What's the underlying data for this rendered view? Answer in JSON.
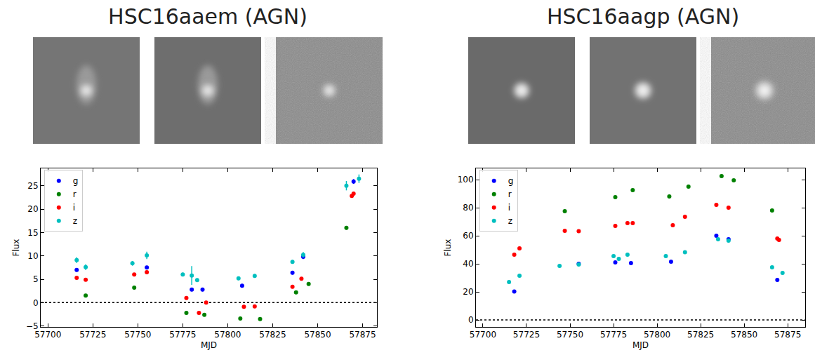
{
  "chart_data": [
    {
      "type": "scatter",
      "title": "HSC16aaem (AGN)",
      "x_label": "MJD",
      "y_label": "Flux",
      "xlim": [
        57696,
        57883
      ],
      "ylim": [
        -5.2,
        28.7
      ],
      "xticks": [
        57700,
        57725,
        57750,
        57775,
        57800,
        57825,
        57850,
        57875
      ],
      "yticks": [
        {
          "value": -5,
          "label": "−5"
        },
        0,
        5,
        10,
        15,
        20,
        25
      ],
      "legend": "upper left",
      "hline": 0,
      "series": [
        {
          "name": "g",
          "color": "#0000ff",
          "x": [
            57716,
            57755,
            57780,
            57786,
            57808,
            57836,
            57842,
            57870
          ],
          "values": [
            7.0,
            7.5,
            2.8,
            2.8,
            3.6,
            6.4,
            9.8,
            25.9
          ],
          "errors": [
            0.4,
            0.4,
            0.4,
            0.4,
            0.4,
            0.4,
            0.5,
            0.5
          ]
        },
        {
          "name": "r",
          "color": "#008000",
          "x": [
            57721,
            57748,
            57777,
            57787,
            57807,
            57818,
            57838,
            57845,
            57866
          ],
          "values": [
            1.5,
            3.2,
            -2.2,
            -2.6,
            -3.4,
            -3.5,
            2.2,
            4.0,
            16.0
          ],
          "errors": [
            0.3,
            0.3,
            0.3,
            0.3,
            0.3,
            0.3,
            0.3,
            0.3,
            0.4
          ]
        },
        {
          "name": "i",
          "color": "#ff0000",
          "x": [
            57716,
            57721,
            57748,
            57755,
            57777,
            57784,
            57788,
            57809,
            57815,
            57836,
            57841,
            57869,
            57870
          ],
          "values": [
            5.3,
            4.9,
            6.0,
            6.5,
            1.0,
            -2.2,
            0.0,
            -0.9,
            -0.8,
            3.4,
            5.1,
            22.8,
            23.3
          ],
          "errors": [
            0.3,
            0.3,
            0.3,
            0.3,
            0.3,
            0.3,
            0.3,
            0.3,
            0.3,
            0.3,
            0.3,
            0.4,
            0.4
          ]
        },
        {
          "name": "z",
          "color": "#00bfbf",
          "x": [
            57716,
            57721,
            57747,
            57755,
            57775,
            57780,
            57783,
            57806,
            57815,
            57836,
            57842,
            57866,
            57873
          ],
          "values": [
            9.1,
            7.6,
            8.4,
            10.1,
            6.0,
            5.8,
            4.8,
            5.2,
            5.7,
            8.7,
            10.2,
            25.0,
            26.5
          ],
          "errors": [
            0.6,
            0.6,
            0.5,
            0.8,
            0.4,
            2.0,
            0.4,
            0.4,
            0.4,
            0.4,
            0.6,
            1.0,
            0.9
          ]
        }
      ]
    },
    {
      "type": "scatter",
      "title": "HSC16aagp (AGN)",
      "x_label": "MJD",
      "y_label": "Flux",
      "xlim": [
        57696,
        57885
      ],
      "ylim": [
        -5,
        108
      ],
      "xticks": [
        57700,
        57725,
        57750,
        57775,
        57800,
        57825,
        57850,
        57875
      ],
      "yticks": [
        0,
        20,
        40,
        60,
        80,
        100
      ],
      "legend": "upper left",
      "hline": 0,
      "series": [
        {
          "name": "g",
          "color": "#0000ff",
          "x": [
            57718,
            57755,
            57776,
            57785,
            57808,
            57834,
            57841,
            57869
          ],
          "values": [
            20.3,
            40.0,
            41.0,
            40.5,
            41.5,
            60.0,
            57.5,
            28.5
          ],
          "errors": [
            0.6,
            0.6,
            0.6,
            0.6,
            0.6,
            0.7,
            0.7,
            0.6
          ]
        },
        {
          "name": "r",
          "color": "#008000",
          "x": [
            57747,
            57776,
            57786,
            57807,
            57818,
            57837,
            57844,
            57866
          ],
          "values": [
            77.5,
            87.5,
            92.5,
            88.0,
            95.0,
            102.5,
            99.5,
            78.0
          ],
          "errors": [
            0.6,
            0.6,
            0.6,
            0.6,
            0.6,
            0.7,
            0.7,
            0.6
          ]
        },
        {
          "name": "i",
          "color": "#ff0000",
          "x": [
            57718,
            57721,
            57747,
            57755,
            57776,
            57783,
            57786,
            57809,
            57816,
            57834,
            57841,
            57869,
            57870
          ],
          "values": [
            46.5,
            51.0,
            63.5,
            63.3,
            67.0,
            69.0,
            69.0,
            67.5,
            73.5,
            82.0,
            80.0,
            58.0,
            57.0
          ],
          "errors": [
            0.6,
            0.6,
            0.6,
            0.6,
            0.6,
            0.6,
            0.6,
            0.6,
            0.6,
            0.7,
            0.7,
            0.6,
            0.6
          ]
        },
        {
          "name": "z",
          "color": "#00bfbf",
          "x": [
            57715,
            57721,
            57744,
            57755,
            57775,
            57778,
            57783,
            57805,
            57816,
            57835,
            57841,
            57866,
            57872
          ],
          "values": [
            27.0,
            31.5,
            38.5,
            39.5,
            45.5,
            43.5,
            46.5,
            45.5,
            48.3,
            57.5,
            56.5,
            37.5,
            33.5
          ],
          "errors": [
            0.8,
            0.8,
            0.8,
            1.2,
            0.8,
            1.2,
            0.8,
            0.8,
            0.8,
            0.9,
            0.9,
            0.8,
            0.8
          ]
        }
      ]
    }
  ]
}
